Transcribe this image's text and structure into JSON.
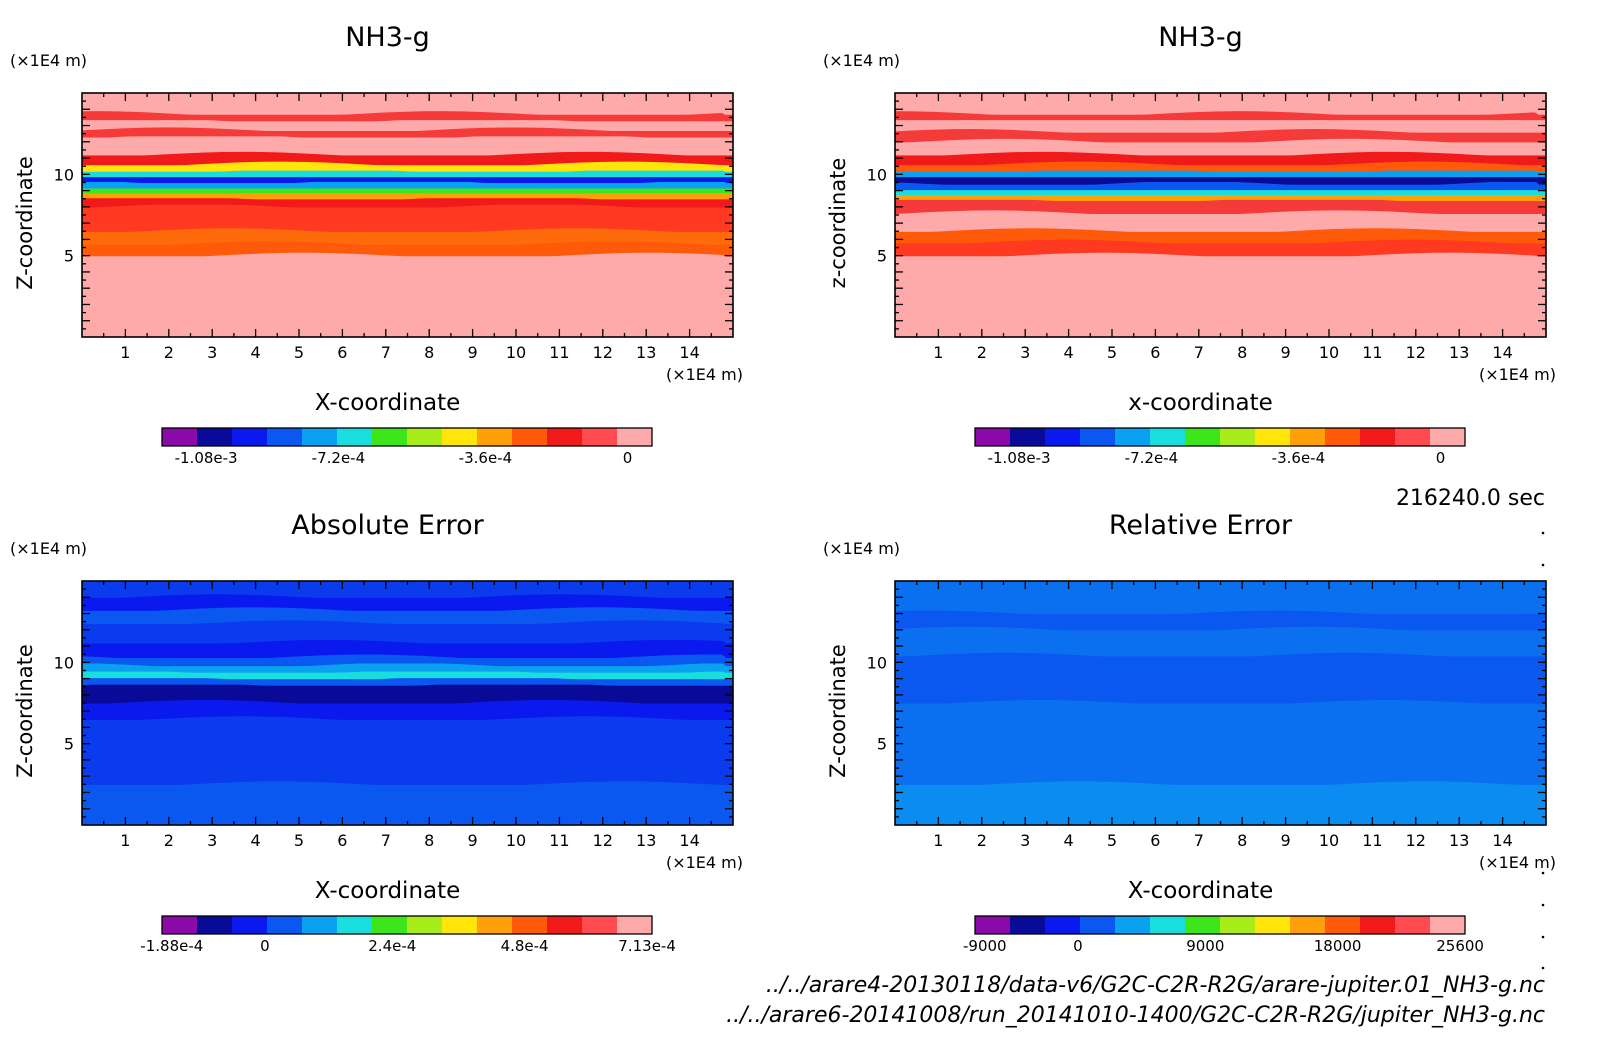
{
  "colors": {
    "levels9": [
      "#8a0aa8",
      "#0a0a98",
      "#0a1aee",
      "#0a58f0",
      "#0aa2f0",
      "#1adede",
      "#3ce61a",
      "#a8ec1a",
      "#ffe50a",
      "#ffa00a",
      "#ff5a0a",
      "#f01a1a",
      "#ff4a50",
      "#ffaaaa"
    ],
    "blue_bg": "#0a3ced",
    "blue_mid": "#0a58f0",
    "blue_light": "#0a8cf0",
    "blue_dark": "#0a0a98",
    "red_bg": "#ffaaaa",
    "red_mid": "#f53a3a",
    "red_strong": "#ff1a0a",
    "orange": "#ff6a0a"
  },
  "timestamp": "216240.0 sec",
  "file_paths": [
    "../../arare4-20130118/data-v6/G2C-C2R-R2G/arare-jupiter.01_NH3-g.nc",
    "../../arare6-20141008/run_20141010-1400/G2C-C2R-R2G/jupiter_NH3-g.nc"
  ],
  "chart_data": [
    {
      "type": "heatmap",
      "title": "NH3-g",
      "xlabel": "X-coordinate",
      "ylabel": "Z-coordinate",
      "x_unit": "(×1E4 m)",
      "y_unit": "(×1E4 m)",
      "xlim": [
        0,
        15
      ],
      "ylim": [
        0,
        15
      ],
      "x_ticks": [
        "1",
        "2",
        "3",
        "4",
        "5",
        "6",
        "7",
        "8",
        "9",
        "10",
        "11",
        "12",
        "13",
        "14"
      ],
      "y_ticks": [
        "5",
        "10"
      ],
      "colorbar": {
        "labels": [
          "-1.08e-3",
          "-7.2e-4",
          "-3.6e-4",
          "0"
        ],
        "levels": 11,
        "range": [
          -0.00126,
          1e-05
        ]
      },
      "bands": [
        {
          "z": [
            0,
            5.0
          ],
          "color": "#ffaaaa"
        },
        {
          "z": [
            5.0,
            5.7
          ],
          "color": "#ff5a0a"
        },
        {
          "z": [
            5.7,
            6.5
          ],
          "color": "#ff6a0a"
        },
        {
          "z": [
            6.5,
            8.0
          ],
          "color": "#ff3a20"
        },
        {
          "z": [
            8.0,
            8.5
          ],
          "color": "#f01a1a"
        },
        {
          "z": [
            8.5,
            8.9
          ],
          "color": "#ffa00a"
        },
        {
          "z": [
            8.9,
            9.2
          ],
          "color": "#3ce61a"
        },
        {
          "z": [
            9.2,
            9.5
          ],
          "color": "#0aa2f0"
        },
        {
          "z": [
            9.5,
            9.9
          ],
          "color": "#0a1aee"
        },
        {
          "z": [
            9.9,
            10.2
          ],
          "color": "#1adede"
        },
        {
          "z": [
            10.2,
            10.6
          ],
          "color": "#ffe50a"
        },
        {
          "z": [
            10.6,
            11.2
          ],
          "color": "#f01a1a"
        },
        {
          "z": [
            11.2,
            12.3
          ],
          "color": "#ffaaaa"
        },
        {
          "z": [
            12.3,
            12.7
          ],
          "color": "#f53a3a"
        },
        {
          "z": [
            12.7,
            13.3
          ],
          "color": "#ffaaaa"
        },
        {
          "z": [
            13.3,
            13.7
          ],
          "color": "#f53a3a"
        },
        {
          "z": [
            13.7,
            15.0
          ],
          "color": "#ffaaaa"
        }
      ]
    },
    {
      "type": "heatmap",
      "title": "NH3-g",
      "xlabel": "x-coordinate",
      "ylabel": "z-coordinate",
      "x_unit": "(×1E4 m)",
      "y_unit": "(×1E4 m)",
      "xlim": [
        0,
        15
      ],
      "ylim": [
        0,
        15
      ],
      "x_ticks": [
        "1",
        "2",
        "3",
        "4",
        "5",
        "6",
        "7",
        "8",
        "9",
        "10",
        "11",
        "12",
        "13",
        "14"
      ],
      "y_ticks": [
        "5",
        "10"
      ],
      "colorbar": {
        "labels": [
          "-1.08e-3",
          "-7.2e-4",
          "-3.6e-4",
          "0"
        ],
        "levels": 11,
        "range": [
          -0.00126,
          1e-05
        ]
      },
      "bands": [
        {
          "z": [
            0,
            5.0
          ],
          "color": "#ffaaaa"
        },
        {
          "z": [
            5.0,
            5.8
          ],
          "color": "#ff3a20"
        },
        {
          "z": [
            5.8,
            6.5
          ],
          "color": "#ff5a0a"
        },
        {
          "z": [
            6.5,
            7.6
          ],
          "color": "#ffaaaa"
        },
        {
          "z": [
            7.6,
            8.4
          ],
          "color": "#f53a3a"
        },
        {
          "z": [
            8.4,
            8.8
          ],
          "color": "#ffa00a"
        },
        {
          "z": [
            8.8,
            9.1
          ],
          "color": "#1adede"
        },
        {
          "z": [
            9.1,
            9.4
          ],
          "color": "#0a58f0"
        },
        {
          "z": [
            9.4,
            9.9
          ],
          "color": "#0a0a98"
        },
        {
          "z": [
            9.9,
            10.2
          ],
          "color": "#0aa2f0"
        },
        {
          "z": [
            10.2,
            10.6
          ],
          "color": "#ff5a0a"
        },
        {
          "z": [
            10.6,
            11.2
          ],
          "color": "#f01a1a"
        },
        {
          "z": [
            11.2,
            12.0
          ],
          "color": "#ffaaaa"
        },
        {
          "z": [
            12.0,
            12.6
          ],
          "color": "#f53a3a"
        },
        {
          "z": [
            12.6,
            13.4
          ],
          "color": "#ffaaaa"
        },
        {
          "z": [
            13.4,
            13.7
          ],
          "color": "#f53a3a"
        },
        {
          "z": [
            13.7,
            15.0
          ],
          "color": "#ffaaaa"
        }
      ]
    },
    {
      "type": "heatmap",
      "title": "Absolute Error",
      "xlabel": "X-coordinate",
      "ylabel": "Z-coordinate",
      "x_unit": "(×1E4 m)",
      "y_unit": "(×1E4 m)",
      "xlim": [
        0,
        15
      ],
      "ylim": [
        0,
        15
      ],
      "x_ticks": [
        "1",
        "2",
        "3",
        "4",
        "5",
        "6",
        "7",
        "8",
        "9",
        "10",
        "11",
        "12",
        "13",
        "14"
      ],
      "y_ticks": [
        "5",
        "10"
      ],
      "colorbar": {
        "labels": [
          "-1.88e-4",
          "0",
          "2.4e-4",
          "4.8e-4",
          "7.13e-4"
        ],
        "levels": 11,
        "range": [
          -0.000188,
          0.000713
        ]
      },
      "bands": [
        {
          "z": [
            0,
            2.5
          ],
          "color": "#0a58f0"
        },
        {
          "z": [
            2.5,
            6.5
          ],
          "color": "#0a3ced"
        },
        {
          "z": [
            6.5,
            7.5
          ],
          "color": "#0a1aee"
        },
        {
          "z": [
            7.5,
            8.6
          ],
          "color": "#0a0a98"
        },
        {
          "z": [
            8.6,
            9.0
          ],
          "color": "#0a58f0"
        },
        {
          "z": [
            9.0,
            9.4
          ],
          "color": "#1adede"
        },
        {
          "z": [
            9.4,
            9.8
          ],
          "color": "#0aa2f0"
        },
        {
          "z": [
            9.8,
            10.3
          ],
          "color": "#0a58f0"
        },
        {
          "z": [
            10.3,
            11.2
          ],
          "color": "#0a1aee"
        },
        {
          "z": [
            11.2,
            12.4
          ],
          "color": "#0a3ced"
        },
        {
          "z": [
            12.4,
            13.2
          ],
          "color": "#0a58f0"
        },
        {
          "z": [
            13.2,
            14.0
          ],
          "color": "#0a1aee"
        },
        {
          "z": [
            14.0,
            15.0
          ],
          "color": "#0a3ced"
        }
      ]
    },
    {
      "type": "heatmap",
      "title": "Relative Error",
      "xlabel": "X-coordinate",
      "ylabel": "Z-coordinate",
      "x_unit": "(×1E4 m)",
      "y_unit": "(×1E4 m)",
      "xlim": [
        0,
        15
      ],
      "ylim": [
        0,
        15
      ],
      "x_ticks": [
        "1",
        "2",
        "3",
        "4",
        "5",
        "6",
        "7",
        "8",
        "9",
        "10",
        "11",
        "12",
        "13",
        "14"
      ],
      "y_ticks": [
        "5",
        "10"
      ],
      "colorbar": {
        "labels": [
          "-9000",
          "0",
          "9000",
          "18000",
          "25600"
        ],
        "levels": 11,
        "range": [
          -9000,
          25600
        ]
      },
      "bands": [
        {
          "z": [
            0,
            2.5
          ],
          "color": "#0a8cf0"
        },
        {
          "z": [
            2.5,
            7.5
          ],
          "color": "#0a70f0"
        },
        {
          "z": [
            7.5,
            10.4
          ],
          "color": "#0a58f0"
        },
        {
          "z": [
            10.4,
            12.0
          ],
          "color": "#0a70f0"
        },
        {
          "z": [
            12.0,
            13.0
          ],
          "color": "#0a58f0"
        },
        {
          "z": [
            13.0,
            15.0
          ],
          "color": "#0a70f0"
        }
      ]
    }
  ]
}
